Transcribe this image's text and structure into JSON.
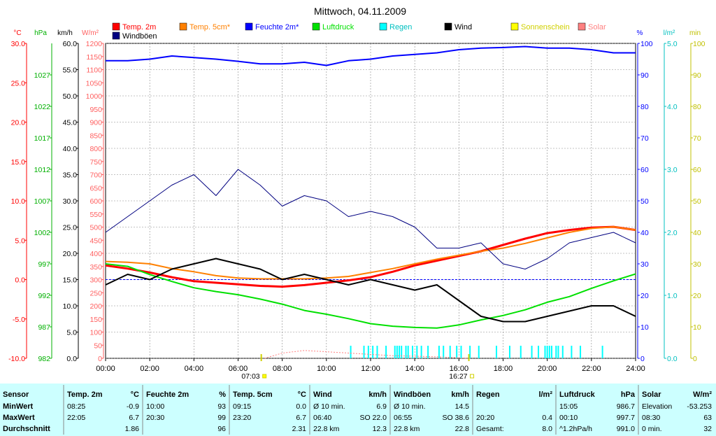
{
  "chart_data": {
    "type": "line",
    "title": "Mittwoch, 04.11.2009",
    "x_ticks": [
      "00:00",
      "02:00",
      "04:00",
      "06:00",
      "08:00",
      "10:00",
      "12:00",
      "14:00",
      "16:00",
      "18:00",
      "20:00",
      "22:00",
      "24:00"
    ],
    "sunrise": "07:03",
    "sunset": "16:27",
    "grid": true,
    "legend": {
      "row1": [
        {
          "label": "Temp. 2m",
          "color": "#ff0000"
        },
        {
          "label": "Temp. 5cm*",
          "color": "#ff8000"
        },
        {
          "label": "Feuchte 2m*",
          "color": "#0000ff"
        },
        {
          "label": "Luftdruck",
          "color": "#00e000"
        },
        {
          "label": "Regen",
          "color": "#00ffff"
        },
        {
          "label": "Wind",
          "color": "#000000"
        },
        {
          "label": "Sonnenschein",
          "color": "#ffff00"
        },
        {
          "label": "Solar",
          "color": "#ff8080"
        }
      ],
      "row2": [
        {
          "label": "Windböen",
          "color": "#000080"
        }
      ]
    },
    "axes": {
      "temp": {
        "unit": "°C",
        "color": "#ff0000",
        "min": -10,
        "max": 30,
        "ticks": [
          "30.0",
          "25.0",
          "20.0",
          "15.0",
          "10.0",
          "5.0",
          "0.0",
          "-5.0",
          "-10.0"
        ]
      },
      "pressure": {
        "unit": "hPa",
        "color": "#00b000",
        "min": 982,
        "max": 1032,
        "ticks": [
          "1027",
          "1022",
          "1017",
          "1012",
          "1007",
          "1002",
          "997",
          "992",
          "987",
          "982"
        ]
      },
      "wind": {
        "unit": "km/h",
        "color": "#000000",
        "min": 0,
        "max": 60,
        "ticks": [
          "60.0",
          "55.0",
          "50.0",
          "45.0",
          "40.0",
          "35.0",
          "30.0",
          "25.0",
          "20.0",
          "15.0",
          "10.0",
          "5.0",
          "0.0"
        ]
      },
      "solar": {
        "unit": "W/m²",
        "color": "#ff6060",
        "min": 0,
        "max": 1200,
        "ticks": [
          "1200",
          "1150",
          "1100",
          "1050",
          "1000",
          "950",
          "900",
          "850",
          "800",
          "750",
          "700",
          "650",
          "600",
          "550",
          "500",
          "450",
          "400",
          "350",
          "300",
          "250",
          "200",
          "150",
          "100",
          "50",
          "0"
        ]
      },
      "humidity": {
        "unit": "%",
        "color": "#0000ff",
        "min": 0,
        "max": 100,
        "ticks": [
          "100",
          "90",
          "80",
          "70",
          "60",
          "50",
          "40",
          "30",
          "20",
          "10",
          "0"
        ]
      },
      "rain": {
        "unit": "l/m²",
        "color": "#00c0c0",
        "min": 0,
        "max": 5,
        "ticks": [
          "5.0",
          "4.0",
          "3.0",
          "2.0",
          "1.0",
          "0.0"
        ]
      },
      "sunshine": {
        "unit": "min",
        "color": "#c0c000",
        "min": 0,
        "max": 100,
        "ticks": [
          "100",
          "90",
          "80",
          "70",
          "60",
          "50",
          "40",
          "30",
          "20",
          "10",
          "0"
        ]
      }
    },
    "series": [
      {
        "name": "Temp. 2m",
        "axis": "temp",
        "color": "#ff0000",
        "x": [
          0,
          1,
          2,
          3,
          4,
          5,
          6,
          7,
          8,
          9,
          10,
          11,
          12,
          13,
          14,
          15,
          16,
          17,
          18,
          19,
          20,
          21,
          22,
          23,
          24
        ],
        "y": [
          1.8,
          1.4,
          0.9,
          0.3,
          -0.2,
          -0.4,
          -0.6,
          -0.8,
          -0.9,
          -0.7,
          -0.4,
          -0.1,
          0.3,
          1.0,
          1.8,
          2.4,
          3.0,
          3.6,
          4.4,
          5.2,
          5.9,
          6.3,
          6.6,
          6.7,
          6.3
        ]
      },
      {
        "name": "Temp. 5cm*",
        "axis": "temp",
        "color": "#ff8000",
        "x": [
          0,
          1,
          2,
          3,
          4,
          5,
          6,
          7,
          8,
          9,
          10,
          11,
          12,
          13,
          14,
          15,
          16,
          17,
          18,
          19,
          20,
          21,
          22,
          23,
          24
        ],
        "y": [
          2.3,
          2.2,
          2.0,
          1.4,
          1.0,
          0.5,
          0.2,
          0.1,
          0.1,
          0.1,
          0.2,
          0.4,
          0.9,
          1.4,
          2.0,
          2.6,
          3.1,
          3.6,
          4.0,
          4.6,
          5.3,
          6.0,
          6.5,
          6.7,
          6.3
        ]
      },
      {
        "name": "Feuchte 2m*",
        "axis": "humidity",
        "color": "#0000ff",
        "x": [
          0,
          1,
          2,
          3,
          4,
          5,
          6,
          7,
          8,
          9,
          10,
          11,
          12,
          13,
          14,
          15,
          16,
          17,
          18,
          19,
          20,
          21,
          22,
          23,
          24
        ],
        "y": [
          94.5,
          94.5,
          95,
          96,
          95.5,
          95,
          94.3,
          93.5,
          93.5,
          94,
          93,
          94.5,
          95,
          96,
          96.5,
          97,
          98,
          98.5,
          98.7,
          99,
          98.5,
          98.5,
          98,
          97,
          97
        ]
      },
      {
        "name": "Luftdruck",
        "axis": "pressure",
        "color": "#00e000",
        "x": [
          0,
          1,
          2,
          3,
          4,
          5,
          6,
          7,
          8,
          9,
          10,
          11,
          12,
          13,
          14,
          15,
          16,
          17,
          18,
          19,
          20,
          21,
          22,
          23,
          24
        ],
        "y": [
          997.0,
          996.6,
          995.3,
          994.2,
          993.2,
          992.6,
          992.1,
          991.4,
          990.6,
          989.6,
          989.0,
          988.3,
          987.5,
          987.1,
          986.9,
          986.8,
          987.3,
          988.1,
          988.8,
          989.7,
          990.9,
          991.8,
          993.1,
          994.3,
          995.4
        ]
      },
      {
        "name": "Wind",
        "axis": "wind",
        "color": "#000000",
        "x": [
          0,
          1,
          2,
          3,
          4,
          5,
          6,
          7,
          8,
          9,
          10,
          11,
          12,
          13,
          14,
          15,
          16,
          17,
          18,
          19,
          20,
          21,
          22,
          23,
          24
        ],
        "y": [
          14,
          16,
          15,
          17,
          18,
          19,
          18,
          17,
          15,
          16,
          15,
          14,
          15,
          14,
          13,
          14,
          11,
          8,
          7,
          7,
          8,
          9,
          10,
          10,
          8
        ]
      },
      {
        "name": "Windböen",
        "axis": "wind",
        "color": "#000080",
        "x": [
          0,
          1,
          2,
          3,
          4,
          5,
          6,
          7,
          8,
          9,
          10,
          11,
          12,
          13,
          14,
          15,
          16,
          17,
          18,
          19,
          20,
          21,
          22,
          23,
          24
        ],
        "y": [
          24,
          27,
          30,
          33,
          35,
          31,
          36,
          33,
          29,
          31,
          30,
          27,
          28,
          27,
          25,
          21,
          21,
          22,
          18,
          17,
          19,
          22,
          23,
          24,
          22
        ]
      },
      {
        "name": "Solar",
        "axis": "solar",
        "color": "#ff8080",
        "x": [
          7.2,
          8,
          9,
          10,
          11,
          12,
          13,
          14,
          15,
          16,
          16.4
        ],
        "y": [
          0,
          20,
          30,
          25,
          20,
          15,
          10,
          8,
          6,
          2,
          0
        ]
      }
    ],
    "rain_x": [
      11.1,
      11.7,
      11.9,
      12.1,
      12.3,
      12.7,
      13.1,
      13.2,
      13.3,
      13.4,
      13.6,
      13.7,
      13.9,
      14.1,
      14.3,
      14.6,
      15.1,
      15.3,
      15.6,
      15.9,
      16.1,
      16.5,
      16.9,
      17.7,
      18.3,
      18.8,
      19.3,
      19.6,
      19.9,
      20.0,
      20.1,
      20.2,
      20.4,
      20.5,
      20.7,
      21.1,
      21.5,
      22.5
    ]
  },
  "stats": {
    "columns": [
      {
        "header": "Sensor",
        "unit": "",
        "rows": [
          [
            "MinWert",
            ""
          ],
          [
            "MaxWert",
            ""
          ],
          [
            "Durchschnitt",
            ""
          ]
        ]
      },
      {
        "header": "Temp. 2m",
        "unit": "°C",
        "rows": [
          [
            "08:25",
            "-0.9"
          ],
          [
            "22:05",
            "6.7"
          ],
          [
            "",
            "1.86"
          ]
        ]
      },
      {
        "header": "Feuchte 2m",
        "unit": "%",
        "rows": [
          [
            "10:00",
            "93"
          ],
          [
            "20:30",
            "99"
          ],
          [
            "",
            "96"
          ]
        ]
      },
      {
        "header": "Temp. 5cm",
        "unit": "°C",
        "rows": [
          [
            "09:15",
            "0.0"
          ],
          [
            "23:20",
            "6.7"
          ],
          [
            "",
            "2.31"
          ]
        ]
      },
      {
        "header": "Wind",
        "unit": "km/h",
        "rows": [
          [
            "Ø 10 min.",
            "6.9"
          ],
          [
            "06:40",
            "SO 22.0"
          ],
          [
            "22.8 km",
            "12.3"
          ]
        ]
      },
      {
        "header": "Windböen",
        "unit": "km/h",
        "rows": [
          [
            "Ø 10 min.",
            "14.5"
          ],
          [
            "06:55",
            "SO 38.6"
          ],
          [
            "22.8 km",
            "22.8"
          ]
        ]
      },
      {
        "header": "Regen",
        "unit": "l/m²",
        "rows": [
          [
            "",
            ""
          ],
          [
            "20:20",
            "0.4"
          ],
          [
            "Gesamt:",
            "8.0"
          ]
        ]
      },
      {
        "header": "Luftdruck",
        "unit": "hPa",
        "rows": [
          [
            "15:05",
            "986.7"
          ],
          [
            "00:10",
            "997.7"
          ],
          [
            "^1.2hPa/h",
            "991.0"
          ]
        ]
      },
      {
        "header": "Solar",
        "unit": "W/m²",
        "rows": [
          [
            "Elevation",
            "-53.253"
          ],
          [
            "08:30",
            "63"
          ],
          [
            "0 min.",
            "32"
          ]
        ]
      }
    ]
  }
}
